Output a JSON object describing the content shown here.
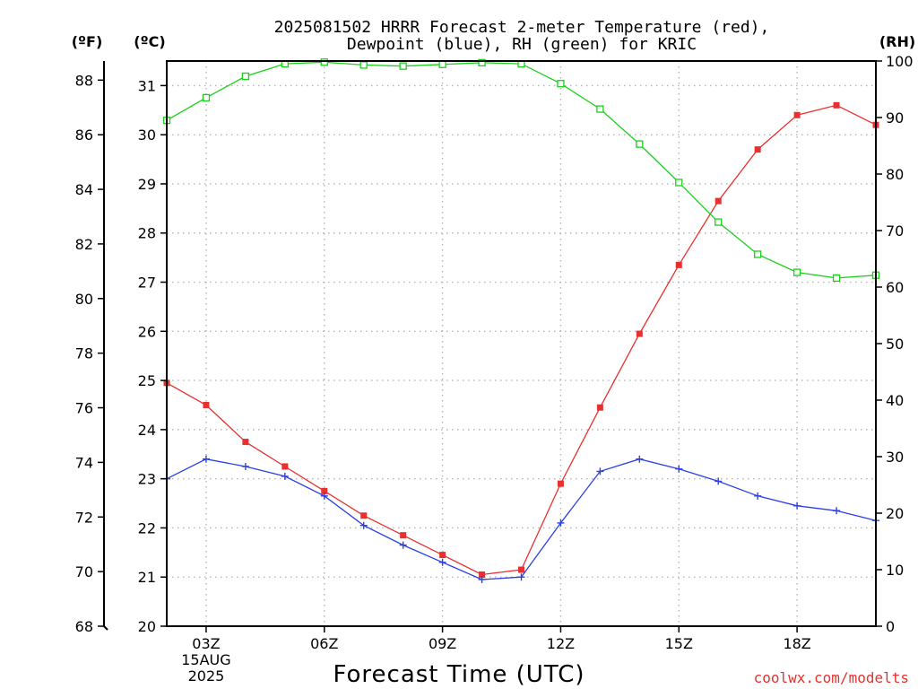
{
  "chart_data": {
    "type": "line",
    "title_line1": "2025081502 HRRR Forecast 2-meter Temperature (red),",
    "title_line2": "Dewpoint (blue), RH (green) for KRIC",
    "unit_f": "(ºF)",
    "unit_c": "(ºC)",
    "unit_rh": "(RH)",
    "xlabel": "Forecast Time (UTC)",
    "credit": "coolwx.com/modelts",
    "x_hours_utc": [
      2,
      3,
      4,
      5,
      6,
      7,
      8,
      9,
      10,
      11,
      12,
      13,
      14,
      15,
      16,
      17,
      18,
      19,
      20
    ],
    "x_ticks": [
      {
        "hour": 3,
        "label": "03Z",
        "sub1": "15AUG",
        "sub2": "2025"
      },
      {
        "hour": 6,
        "label": "06Z"
      },
      {
        "hour": 9,
        "label": "09Z"
      },
      {
        "hour": 12,
        "label": "12Z"
      },
      {
        "hour": 15,
        "label": "15Z"
      },
      {
        "hour": 18,
        "label": "18Z"
      }
    ],
    "x_range": [
      2,
      20
    ],
    "celsius_range": [
      20,
      31.5
    ],
    "celsius_ticks": [
      20,
      21,
      22,
      23,
      24,
      25,
      26,
      27,
      28,
      29,
      30,
      31
    ],
    "fahrenheit_ticks": [
      68,
      70,
      72,
      74,
      76,
      78,
      80,
      82,
      84,
      86,
      88
    ],
    "rh_range": [
      0,
      100
    ],
    "rh_ticks": [
      0,
      10,
      20,
      30,
      40,
      50,
      60,
      70,
      80,
      90,
      100
    ],
    "grid": true,
    "series": [
      {
        "name": "Temperature",
        "axis": "celsius",
        "color": "#e8312f",
        "marker": "filled-square",
        "values": [
          24.95,
          24.5,
          23.75,
          23.25,
          22.75,
          22.25,
          21.85,
          21.45,
          21.05,
          21.15,
          22.9,
          24.45,
          25.95,
          27.35,
          28.65,
          29.7,
          30.4,
          30.6,
          30.2
        ]
      },
      {
        "name": "Dewpoint",
        "axis": "celsius",
        "color": "#2a3fe8",
        "marker": "plus",
        "values": [
          23.0,
          23.4,
          23.25,
          23.05,
          22.65,
          22.05,
          21.65,
          21.3,
          20.95,
          21.0,
          22.1,
          23.15,
          23.4,
          23.2,
          22.95,
          22.65,
          22.45,
          22.35,
          22.15
        ]
      },
      {
        "name": "RH",
        "axis": "rh",
        "color": "#19d119",
        "marker": "open-square",
        "values": [
          89.5,
          93.5,
          97.3,
          99.5,
          99.8,
          99.3,
          99.1,
          99.4,
          99.7,
          99.5,
          96.0,
          91.5,
          85.3,
          78.5,
          71.5,
          65.8,
          62.6,
          61.6,
          62.1
        ]
      }
    ]
  }
}
